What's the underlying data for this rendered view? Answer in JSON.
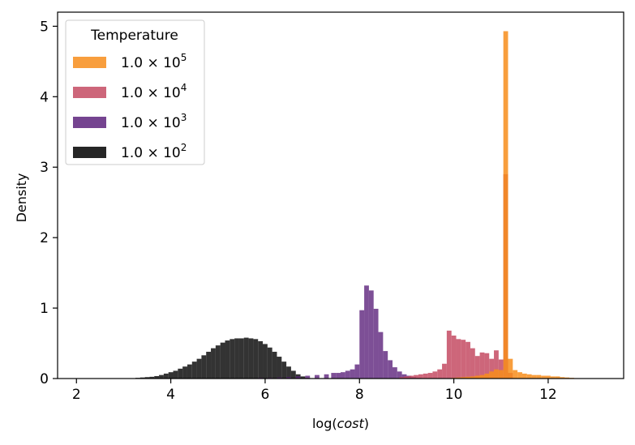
{
  "chart_data": {
    "type": "histogram",
    "xlabel": "log(cost)",
    "xlabel_plain": "log(",
    "xlabel_italic": "cost",
    "xlabel_close": ")",
    "ylabel": "Density",
    "xlim": [
      1.6,
      13.6
    ],
    "ylim": [
      0,
      5.2
    ],
    "xticks": [
      2,
      4,
      6,
      8,
      10,
      12
    ],
    "yticks": [
      0,
      1,
      2,
      3,
      4,
      5
    ],
    "legend": {
      "title": "Temperature",
      "placement": "top-left",
      "entries": [
        {
          "mantissa": "1.0",
          "times": "×",
          "base": "10",
          "exp": "5",
          "color": "#f78d1b"
        },
        {
          "mantissa": "1.0",
          "times": "×",
          "base": "10",
          "exp": "4",
          "color": "#c44b63"
        },
        {
          "mantissa": "1.0",
          "times": "×",
          "base": "10",
          "exp": "3",
          "color": "#5d237c"
        },
        {
          "mantissa": "1.0",
          "times": "×",
          "base": "10",
          "exp": "2",
          "color": "#000000"
        }
      ]
    },
    "series": [
      {
        "temperature": "1.0e2",
        "color": "#000000",
        "opacity": 0.8,
        "bins": [
          [
            3.3,
            0.01
          ],
          [
            3.4,
            0.015
          ],
          [
            3.5,
            0.02
          ],
          [
            3.6,
            0.025
          ],
          [
            3.7,
            0.035
          ],
          [
            3.8,
            0.05
          ],
          [
            3.9,
            0.07
          ],
          [
            4.0,
            0.09
          ],
          [
            4.1,
            0.11
          ],
          [
            4.2,
            0.14
          ],
          [
            4.3,
            0.17
          ],
          [
            4.4,
            0.2
          ],
          [
            4.5,
            0.24
          ],
          [
            4.6,
            0.28
          ],
          [
            4.7,
            0.33
          ],
          [
            4.8,
            0.38
          ],
          [
            4.9,
            0.43
          ],
          [
            5.0,
            0.47
          ],
          [
            5.1,
            0.51
          ],
          [
            5.2,
            0.54
          ],
          [
            5.3,
            0.56
          ],
          [
            5.4,
            0.57
          ],
          [
            5.5,
            0.57
          ],
          [
            5.6,
            0.58
          ],
          [
            5.7,
            0.57
          ],
          [
            5.8,
            0.56
          ],
          [
            5.9,
            0.53
          ],
          [
            6.0,
            0.49
          ],
          [
            6.1,
            0.44
          ],
          [
            6.2,
            0.38
          ],
          [
            6.3,
            0.31
          ],
          [
            6.4,
            0.24
          ],
          [
            6.5,
            0.17
          ],
          [
            6.6,
            0.11
          ],
          [
            6.7,
            0.06
          ],
          [
            6.8,
            0.03
          ],
          [
            6.9,
            0.01
          ]
        ]
      },
      {
        "temperature": "1.0e3",
        "color": "#5d237c",
        "opacity": 0.8,
        "bins": [
          [
            5.9,
            0.01
          ],
          [
            6.1,
            0.01
          ],
          [
            6.3,
            0.015
          ],
          [
            6.5,
            0.02
          ],
          [
            6.7,
            0.03
          ],
          [
            6.9,
            0.04
          ],
          [
            7.1,
            0.05
          ],
          [
            7.3,
            0.06
          ],
          [
            7.45,
            0.08
          ],
          [
            7.55,
            0.08
          ],
          [
            7.65,
            0.09
          ],
          [
            7.75,
            0.11
          ],
          [
            7.85,
            0.13
          ],
          [
            7.95,
            0.2
          ],
          [
            8.05,
            0.97
          ],
          [
            8.15,
            1.32
          ],
          [
            8.25,
            1.25
          ],
          [
            8.35,
            0.99
          ],
          [
            8.45,
            0.66
          ],
          [
            8.55,
            0.39
          ],
          [
            8.65,
            0.26
          ],
          [
            8.75,
            0.16
          ],
          [
            8.85,
            0.1
          ],
          [
            8.95,
            0.06
          ],
          [
            9.05,
            0.04
          ],
          [
            9.15,
            0.02
          ],
          [
            9.25,
            0.01
          ]
        ]
      },
      {
        "temperature": "1.0e4",
        "color": "#c44b63",
        "opacity": 0.85,
        "bins": [
          [
            8.9,
            0.02
          ],
          [
            9.0,
            0.03
          ],
          [
            9.1,
            0.04
          ],
          [
            9.2,
            0.05
          ],
          [
            9.3,
            0.06
          ],
          [
            9.4,
            0.07
          ],
          [
            9.5,
            0.08
          ],
          [
            9.6,
            0.1
          ],
          [
            9.7,
            0.13
          ],
          [
            9.8,
            0.21
          ],
          [
            9.9,
            0.68
          ],
          [
            10.0,
            0.61
          ],
          [
            10.1,
            0.56
          ],
          [
            10.2,
            0.55
          ],
          [
            10.3,
            0.52
          ],
          [
            10.4,
            0.43
          ],
          [
            10.5,
            0.32
          ],
          [
            10.6,
            0.37
          ],
          [
            10.7,
            0.36
          ],
          [
            10.8,
            0.28
          ],
          [
            10.9,
            0.4
          ],
          [
            11.0,
            0.27
          ],
          [
            11.1,
            2.9
          ],
          [
            11.2,
            0.08
          ]
        ]
      },
      {
        "temperature": "1.0e5",
        "color": "#f78d1b",
        "opacity": 0.85,
        "bins": [
          [
            10.0,
            0.01
          ],
          [
            10.1,
            0.015
          ],
          [
            10.2,
            0.02
          ],
          [
            10.3,
            0.025
          ],
          [
            10.4,
            0.03
          ],
          [
            10.5,
            0.04
          ],
          [
            10.6,
            0.05
          ],
          [
            10.7,
            0.07
          ],
          [
            10.8,
            0.1
          ],
          [
            10.9,
            0.13
          ],
          [
            11.0,
            0.12
          ],
          [
            11.1,
            4.93
          ],
          [
            11.2,
            0.28
          ],
          [
            11.3,
            0.12
          ],
          [
            11.4,
            0.09
          ],
          [
            11.5,
            0.07
          ],
          [
            11.6,
            0.06
          ],
          [
            11.7,
            0.05
          ],
          [
            11.8,
            0.05
          ],
          [
            11.9,
            0.04
          ],
          [
            12.0,
            0.04
          ],
          [
            12.1,
            0.03
          ],
          [
            12.2,
            0.03
          ],
          [
            12.3,
            0.02
          ],
          [
            12.4,
            0.015
          ],
          [
            12.5,
            0.01
          ]
        ]
      }
    ]
  }
}
